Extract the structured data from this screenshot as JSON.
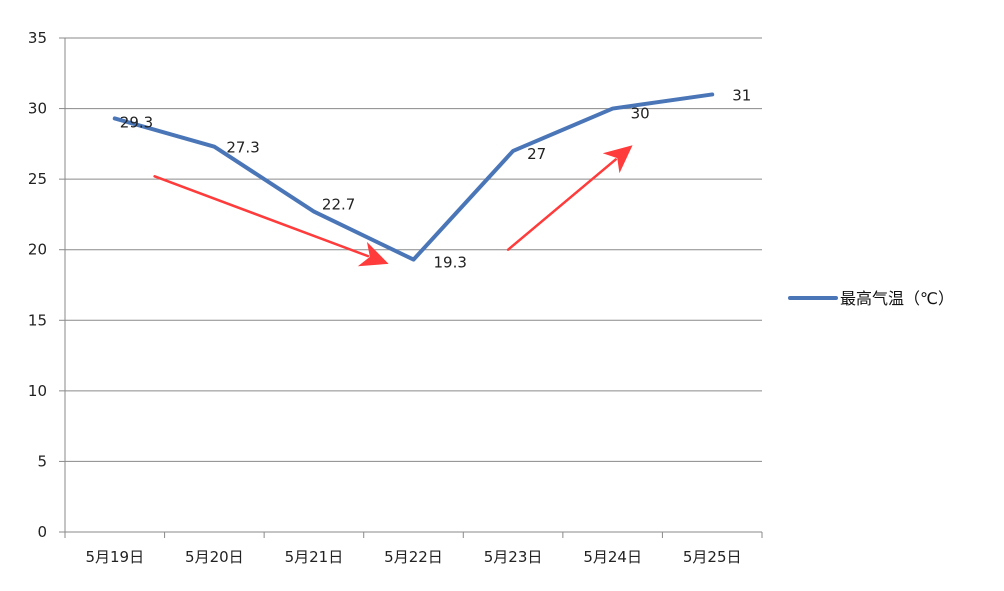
{
  "chart_data": {
    "type": "line",
    "title": "",
    "xlabel": "",
    "ylabel": "",
    "categories": [
      "5月19日",
      "5月20日",
      "5月21日",
      "5月22日",
      "5月23日",
      "5月24日",
      "5月25日"
    ],
    "series": [
      {
        "name": "最高气温（℃）",
        "values": [
          29.3,
          27.3,
          22.7,
          19.3,
          27,
          30,
          31
        ],
        "data_labels": [
          "29.3",
          "27.3",
          "22.7",
          "19.3",
          "27",
          "30",
          "31"
        ],
        "color": "#4a76b8"
      }
    ],
    "ylim": [
      0,
      35
    ],
    "y_ticks": [
      0,
      5,
      10,
      15,
      20,
      25,
      30,
      35
    ],
    "y_tick_labels": [
      "0",
      "5",
      "10",
      "15",
      "20",
      "25",
      "30",
      "35"
    ],
    "grid": true,
    "legend_position": "right",
    "annotations": [
      {
        "type": "arrow",
        "color": "#ff3b3b",
        "from": {
          "x": "5月19日",
          "y": 25.2
        },
        "to": {
          "x": "5月21日",
          "y": 19.0
        },
        "from_offset": 0.4,
        "to_offset": 0.75
      },
      {
        "type": "arrow",
        "color": "#ff3b3b",
        "from": {
          "x": "5月22日",
          "y": 20.0
        },
        "to": {
          "x": "5月24日",
          "y": 27.4
        },
        "from_offset": 0.95,
        "to_offset": 0.2
      }
    ]
  }
}
